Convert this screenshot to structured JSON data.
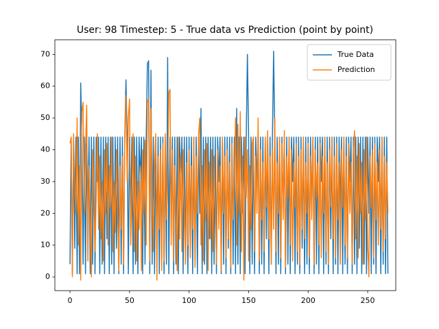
{
  "chart_data": {
    "type": "line",
    "title": "User: 98 Timestep: 5 - True data vs Prediction (point by point)",
    "x": [
      0,
      1,
      2,
      3,
      4,
      5,
      6,
      7,
      8,
      9,
      10,
      11,
      12,
      13,
      14,
      15,
      16,
      17,
      18,
      19,
      20,
      21,
      22,
      23,
      24,
      25,
      26,
      27,
      28,
      29,
      30,
      31,
      32,
      33,
      34,
      35,
      36,
      37,
      38,
      39,
      40,
      41,
      42,
      43,
      44,
      45,
      46,
      47,
      48,
      49,
      50,
      51,
      52,
      53,
      54,
      55,
      56,
      57,
      58,
      59,
      60,
      61,
      62,
      63,
      64,
      65,
      66,
      67,
      68,
      69,
      70,
      71,
      72,
      73,
      74,
      75,
      76,
      77,
      78,
      79,
      80,
      81,
      82,
      83,
      84,
      85,
      86,
      87,
      88,
      89,
      90,
      91,
      92,
      93,
      94,
      95,
      96,
      97,
      98,
      99,
      100,
      101,
      102,
      103,
      104,
      105,
      106,
      107,
      108,
      109,
      110,
      111,
      112,
      113,
      114,
      115,
      116,
      117,
      118,
      119,
      120,
      121,
      122,
      123,
      124,
      125,
      126,
      127,
      128,
      129,
      130,
      131,
      132,
      133,
      134,
      135,
      136,
      137,
      138,
      139,
      140,
      141,
      142,
      143,
      144,
      145,
      146,
      147,
      148,
      149,
      150,
      151,
      152,
      153,
      154,
      155,
      156,
      157,
      158,
      159,
      160,
      161,
      162,
      163,
      164,
      165,
      166,
      167,
      168,
      169,
      170,
      171,
      172,
      173,
      174,
      175,
      176,
      177,
      178,
      179,
      180,
      181,
      182,
      183,
      184,
      185,
      186,
      187,
      188,
      189,
      190,
      191,
      192,
      193,
      194,
      195,
      196,
      197,
      198,
      199,
      200,
      201,
      202,
      203,
      204,
      205,
      206,
      207,
      208,
      209,
      210,
      211,
      212,
      213,
      214,
      215,
      216,
      217,
      218,
      219,
      220,
      221,
      222,
      223,
      224,
      225,
      226,
      227,
      228,
      229,
      230,
      231,
      232,
      233,
      234,
      235,
      236,
      237,
      238,
      239,
      240,
      241,
      242,
      243,
      244,
      245,
      246,
      247,
      248,
      249,
      250,
      251,
      252,
      253,
      254,
      255,
      256,
      257,
      258,
      259,
      260,
      261,
      262,
      263,
      264,
      265,
      266,
      267
    ],
    "series": [
      {
        "name": "True Data",
        "color": "#1f77b4",
        "values": [
          4,
          44,
          1,
          44,
          9,
          44,
          1,
          44,
          1,
          61,
          44,
          4,
          44,
          1,
          44,
          20,
          44,
          1,
          44,
          4,
          44,
          1,
          44,
          30,
          44,
          1,
          44,
          4,
          44,
          1,
          44,
          12,
          44,
          1,
          44,
          4,
          44,
          1,
          44,
          9,
          44,
          1,
          44,
          4,
          44,
          1,
          44,
          62,
          44,
          1,
          44,
          20,
          44,
          1,
          44,
          4,
          44,
          1,
          44,
          30,
          44,
          1,
          44,
          4,
          44,
          67,
          68,
          1,
          65,
          4,
          44,
          1,
          44,
          12,
          44,
          1,
          44,
          4,
          44,
          1,
          44,
          4,
          69,
          1,
          44,
          20,
          44,
          1,
          44,
          4,
          44,
          1,
          44,
          30,
          44,
          1,
          44,
          4,
          44,
          1,
          44,
          9,
          44,
          1,
          44,
          4,
          44,
          1,
          44,
          20,
          53,
          1,
          44,
          4,
          44,
          1,
          44,
          12,
          44,
          1,
          44,
          4,
          44,
          1,
          44,
          30,
          44,
          1,
          44,
          4,
          44,
          1,
          44,
          9,
          44,
          1,
          44,
          4,
          44,
          1,
          53,
          4,
          44,
          1,
          44,
          20,
          44,
          1,
          44,
          70,
          44,
          1,
          44,
          4,
          44,
          1,
          44,
          30,
          44,
          1,
          44,
          4,
          44,
          1,
          44,
          12,
          44,
          1,
          44,
          4,
          44,
          71,
          44,
          1,
          44,
          4,
          44,
          1,
          44,
          20,
          44,
          1,
          44,
          4,
          44,
          1,
          44,
          30,
          44,
          1,
          44,
          4,
          44,
          1,
          44,
          9,
          44,
          1,
          44,
          4,
          44,
          1,
          44,
          20,
          44,
          1,
          44,
          4,
          44,
          1,
          44,
          30,
          44,
          1,
          44,
          4,
          44,
          1,
          44,
          12,
          44,
          1,
          44,
          4,
          44,
          1,
          44,
          20,
          44,
          1,
          44,
          4,
          44,
          1,
          44,
          30,
          44,
          1,
          44,
          4,
          44,
          1,
          44,
          9,
          44,
          1,
          44,
          4,
          44,
          1,
          44,
          20,
          44,
          1,
          44,
          4,
          44,
          1,
          44,
          30,
          44,
          1,
          44,
          4,
          44,
          1,
          44,
          1
        ]
      },
      {
        "name": "Prediction",
        "color": "#ff7f0e",
        "values": [
          42,
          44,
          0,
          45,
          30,
          20,
          50,
          10,
          35,
          -1,
          52,
          55,
          20,
          40,
          54,
          5,
          35,
          18,
          0,
          40,
          30,
          8,
          25,
          45,
          15,
          38,
          12,
          30,
          5,
          40,
          20,
          42,
          10,
          35,
          22,
          44,
          8,
          30,
          14,
          40,
          20,
          2,
          35,
          15,
          38,
          4,
          44,
          57,
          30,
          50,
          56,
          10,
          25,
          45,
          8,
          38,
          5,
          30,
          15,
          35,
          2,
          40,
          20,
          43,
          10,
          55,
          56,
          5,
          53,
          30,
          8,
          35,
          45,
          -1,
          38,
          15,
          40,
          2,
          42,
          5,
          45,
          18,
          30,
          58,
          59,
          10,
          40,
          5,
          35,
          20,
          2,
          44,
          12,
          38,
          8,
          40,
          22,
          4,
          36,
          10,
          40,
          6,
          35,
          15,
          44,
          3,
          38,
          20,
          45,
          50,
          10,
          35,
          5,
          40,
          18,
          42,
          2,
          36,
          12,
          40,
          8,
          38,
          22,
          4,
          40,
          15,
          35,
          2,
          44,
          20,
          38,
          6,
          40,
          12,
          36,
          3,
          42,
          18,
          30,
          50,
          10,
          48,
          20,
          52,
          8,
          38,
          -1,
          44,
          25,
          40,
          5,
          35,
          15,
          42,
          44,
          8,
          38,
          20,
          50,
          5,
          40,
          18,
          36,
          8,
          44,
          22,
          46,
          12,
          38,
          4,
          40,
          15,
          50,
          8,
          36,
          20,
          44,
          6,
          42,
          18,
          46,
          3,
          38,
          25,
          44,
          10,
          40,
          5,
          36,
          22,
          42,
          8,
          38,
          4,
          40,
          15,
          44,
          12,
          36,
          20,
          42,
          6,
          38,
          18,
          44,
          4,
          40,
          25,
          36,
          10,
          42,
          6,
          38,
          20,
          44,
          8,
          36,
          4,
          40,
          22,
          44,
          12,
          38,
          6,
          42,
          18,
          36,
          4,
          40,
          22,
          44,
          10,
          38,
          6,
          42,
          20,
          36,
          4,
          40,
          46,
          12,
          38,
          6,
          42,
          20,
          36,
          4,
          40,
          18,
          44,
          10,
          0,
          38,
          22,
          40,
          6,
          42,
          18,
          36,
          10,
          40,
          15,
          44,
          8,
          38,
          12,
          36,
          20
        ]
      }
    ],
    "xlim": [
      -12.7,
      273.6
    ],
    "xticks": [
      0,
      50,
      100,
      150,
      200,
      250
    ],
    "ylim": [
      -4.3,
      74.6
    ],
    "yticks": [
      0,
      10,
      20,
      30,
      40,
      50,
      60,
      70
    ],
    "legend": "upper right"
  }
}
